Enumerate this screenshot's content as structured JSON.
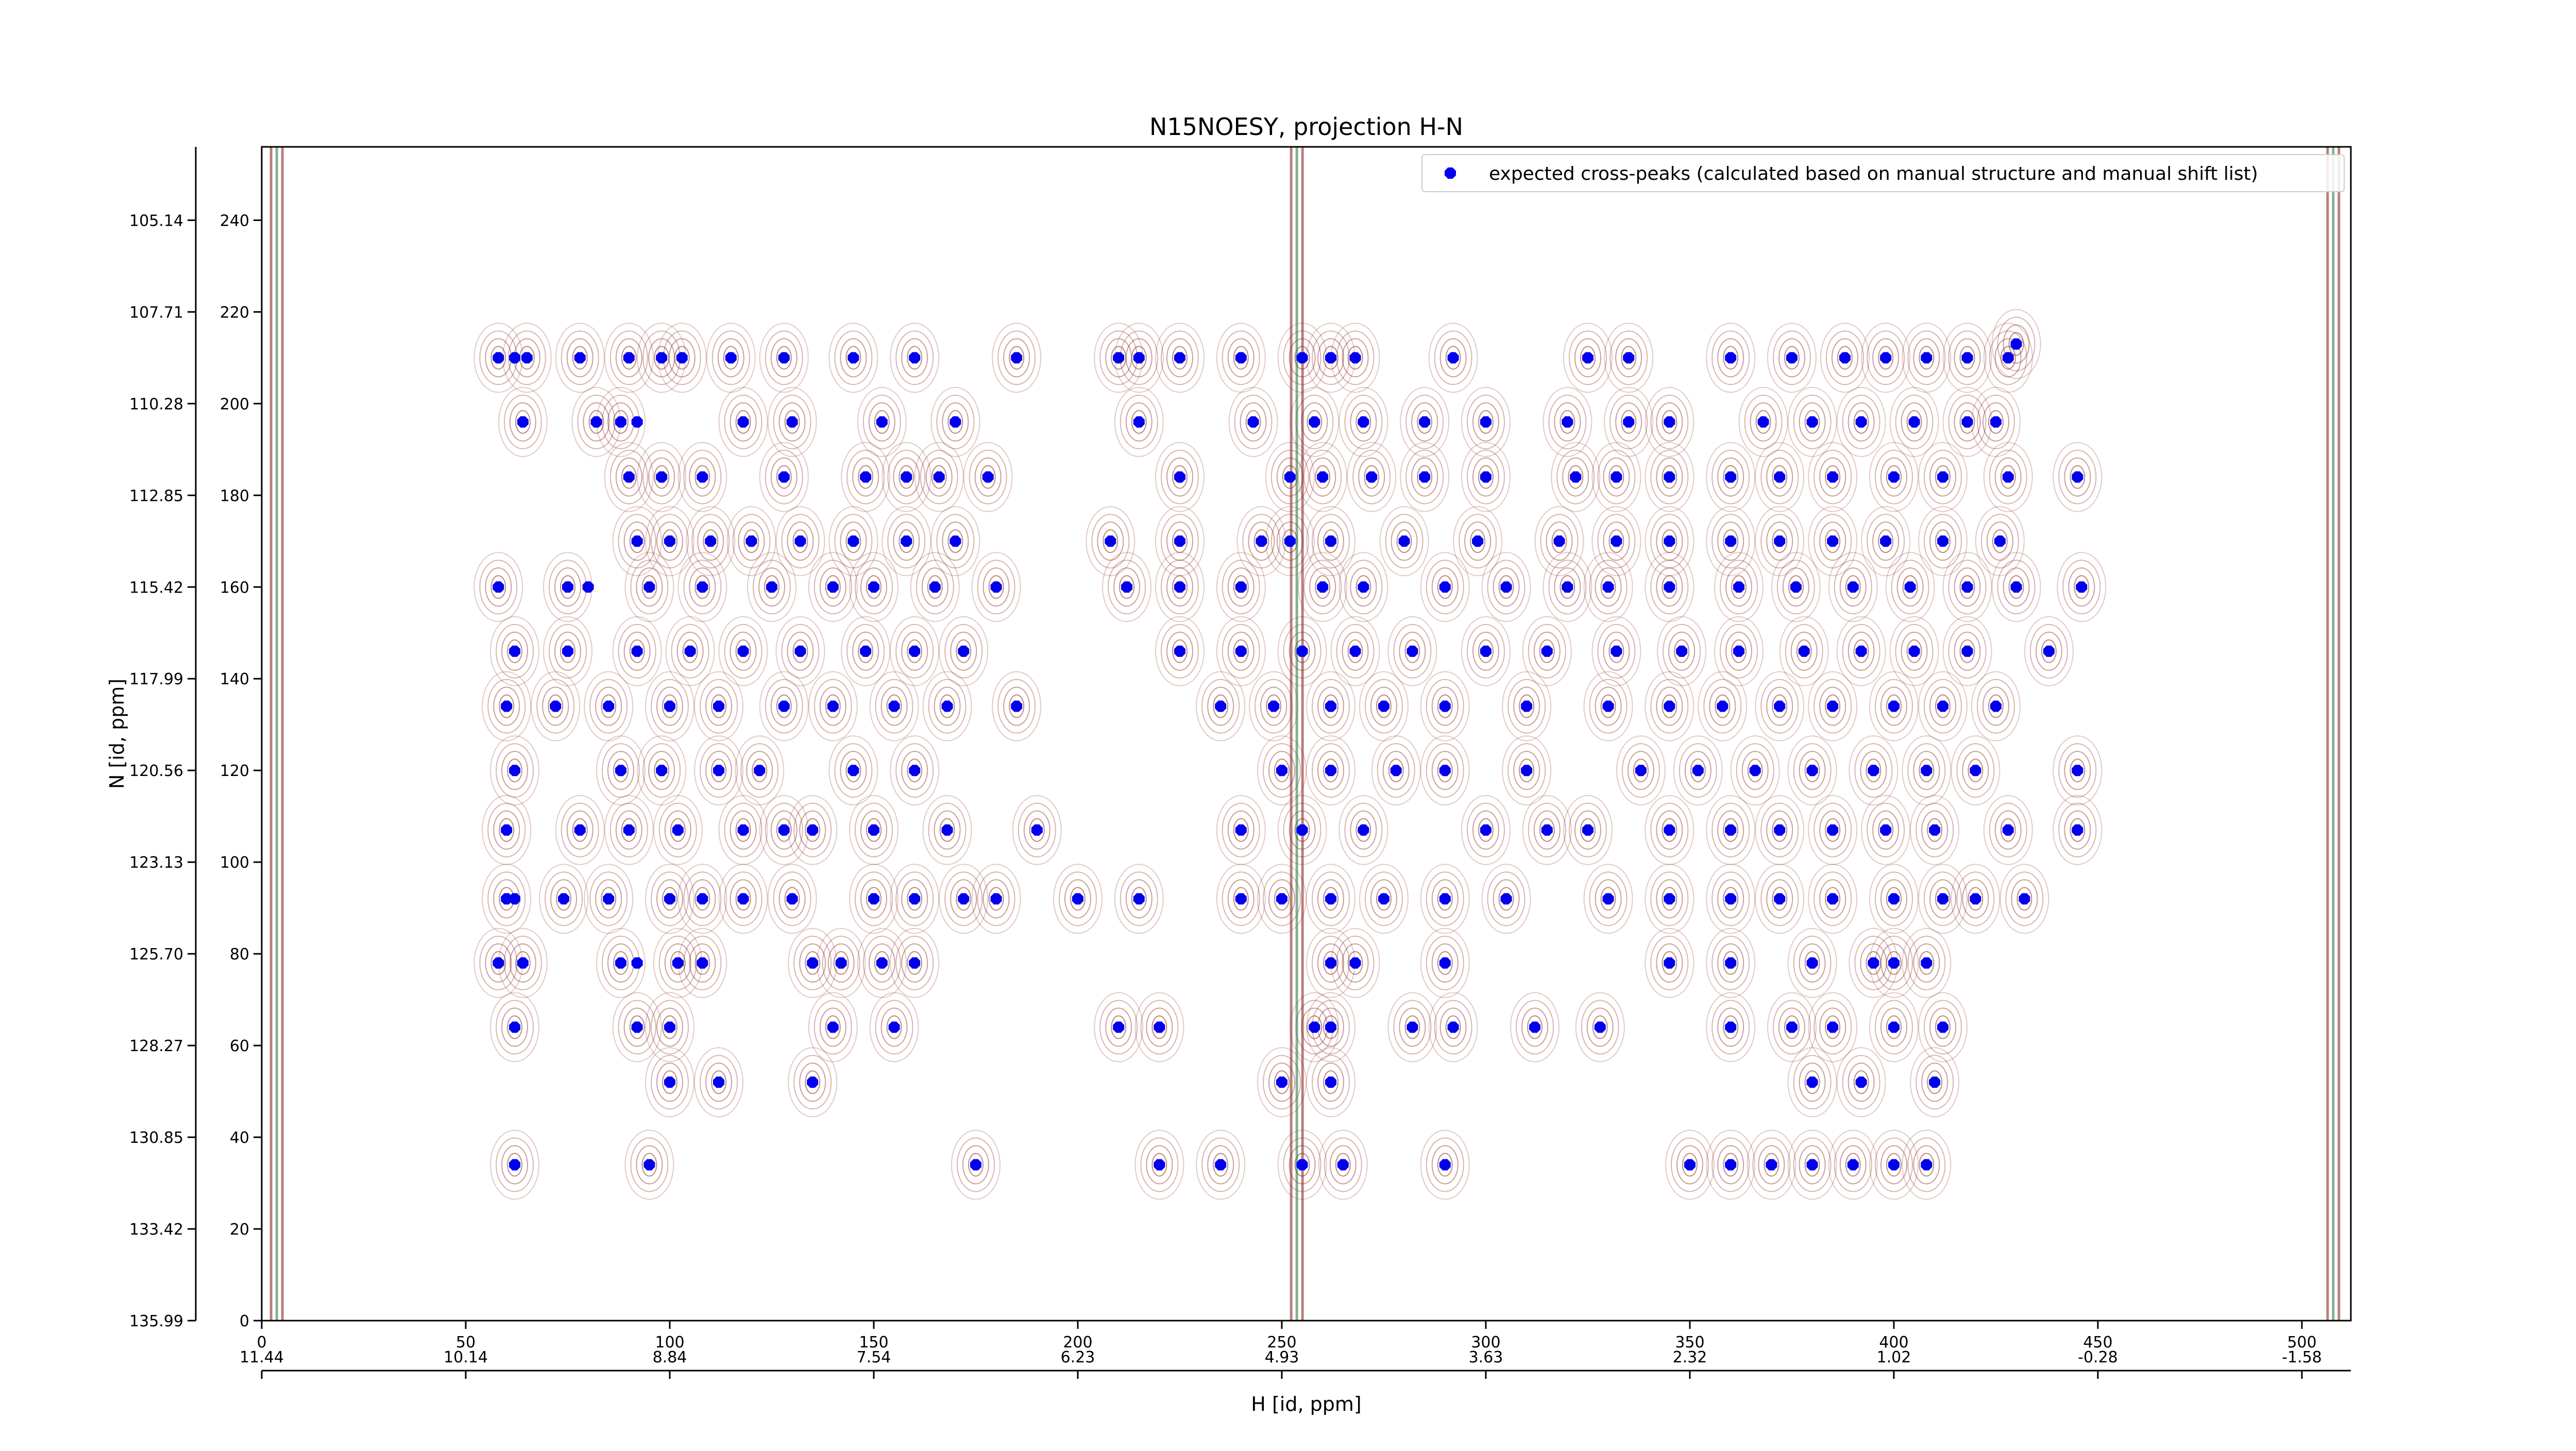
{
  "chart_data": {
    "type": "scatter",
    "title": "N15NOESY, projection H-N",
    "xlabel": "H [id, ppm]",
    "ylabel": "N [id, ppm]",
    "xlim": [
      0,
      512
    ],
    "ylim": [
      0,
      256
    ],
    "x_ticks": [
      "0",
      "50",
      "100",
      "150",
      "200",
      "250",
      "300",
      "350",
      "400",
      "450",
      "500"
    ],
    "y_ticks": [
      "0",
      "20",
      "40",
      "60",
      "80",
      "100",
      "120",
      "140",
      "160",
      "180",
      "200",
      "220",
      "240"
    ],
    "h_ppm_ticks": [
      "11.44",
      "10.14",
      "8.84",
      "7.54",
      "6.23",
      "4.93",
      "3.63",
      "2.32",
      "1.02",
      "-0.28",
      "-1.58"
    ],
    "h_ppm_positions": [
      0,
      50,
      100,
      150,
      200,
      250,
      300,
      350,
      400,
      450,
      500
    ],
    "n_ppm_ticks": [
      "135.99",
      "133.42",
      "130.85",
      "128.27",
      "125.70",
      "123.13",
      "120.56",
      "117.99",
      "115.42",
      "112.85",
      "110.28",
      "107.71",
      "105.14"
    ],
    "n_ppm_positions": [
      0,
      20,
      40,
      60,
      80,
      100,
      120,
      140,
      160,
      180,
      200,
      220,
      240
    ],
    "legend": {
      "position": "top-right",
      "entries": [
        "expected cross-peaks (calculated based on manual structure and manual shift list)"
      ]
    },
    "grid": false,
    "colors": {
      "marker": "#0000ee",
      "contour_positive": "#8b2a22",
      "contour_negative": "#2e7d4f",
      "axes": "#000000"
    },
    "series": [
      {
        "name": "expected cross-peaks (calculated based on manual structure and manual shift list)",
        "x": [
          58,
          62,
          65,
          78,
          90,
          98,
          103,
          115,
          128,
          145,
          160,
          185,
          210,
          215,
          225,
          240,
          255,
          262,
          268,
          292,
          325,
          335,
          360,
          375,
          388,
          398,
          408,
          418,
          428,
          430,
          64,
          82,
          88,
          92,
          118,
          130,
          152,
          170,
          215,
          243,
          258,
          270,
          285,
          300,
          320,
          335,
          345,
          368,
          380,
          392,
          405,
          418,
          425,
          90,
          98,
          108,
          128,
          148,
          158,
          166,
          178,
          225,
          252,
          260,
          272,
          285,
          300,
          322,
          332,
          345,
          360,
          372,
          385,
          400,
          412,
          428,
          445,
          92,
          100,
          110,
          120,
          132,
          145,
          158,
          170,
          208,
          225,
          245,
          252,
          262,
          280,
          298,
          318,
          332,
          345,
          360,
          372,
          385,
          398,
          412,
          426,
          58,
          75,
          80,
          95,
          108,
          125,
          140,
          150,
          165,
          180,
          212,
          225,
          240,
          260,
          270,
          290,
          305,
          320,
          330,
          345,
          362,
          376,
          390,
          404,
          418,
          430,
          446,
          62,
          75,
          92,
          105,
          118,
          132,
          148,
          160,
          172,
          225,
          240,
          255,
          268,
          282,
          300,
          315,
          332,
          348,
          362,
          378,
          392,
          405,
          418,
          438,
          60,
          72,
          85,
          100,
          112,
          128,
          140,
          155,
          168,
          185,
          235,
          248,
          262,
          275,
          290,
          310,
          330,
          345,
          358,
          372,
          385,
          400,
          412,
          425,
          62,
          88,
          98,
          112,
          122,
          145,
          160,
          250,
          262,
          278,
          290,
          310,
          338,
          352,
          366,
          380,
          395,
          408,
          420,
          445,
          60,
          78,
          90,
          102,
          118,
          128,
          135,
          150,
          168,
          190,
          240,
          255,
          270,
          300,
          315,
          325,
          345,
          360,
          372,
          385,
          398,
          410,
          428,
          445,
          60,
          62,
          74,
          85,
          100,
          108,
          118,
          130,
          150,
          160,
          172,
          180,
          200,
          215,
          240,
          250,
          262,
          275,
          290,
          305,
          330,
          345,
          360,
          372,
          385,
          400,
          412,
          420,
          432,
          58,
          64,
          88,
          92,
          102,
          108,
          135,
          142,
          152,
          160,
          262,
          268,
          290,
          345,
          360,
          380,
          395,
          400,
          408,
          62,
          92,
          100,
          140,
          155,
          210,
          220,
          258,
          262,
          282,
          292,
          312,
          328,
          360,
          375,
          385,
          400,
          412,
          62,
          95,
          175,
          220,
          235,
          255,
          265,
          290,
          350,
          360,
          370,
          380,
          390,
          400,
          408,
          100,
          112,
          135,
          250,
          262,
          380,
          392,
          410
        ],
        "y": [
          210,
          210,
          210,
          210,
          210,
          210,
          210,
          210,
          210,
          210,
          210,
          210,
          210,
          210,
          210,
          210,
          210,
          210,
          210,
          210,
          210,
          210,
          210,
          210,
          210,
          210,
          210,
          210,
          210,
          213,
          196,
          196,
          196,
          196,
          196,
          196,
          196,
          196,
          196,
          196,
          196,
          196,
          196,
          196,
          196,
          196,
          196,
          196,
          196,
          196,
          196,
          196,
          196,
          184,
          184,
          184,
          184,
          184,
          184,
          184,
          184,
          184,
          184,
          184,
          184,
          184,
          184,
          184,
          184,
          184,
          184,
          184,
          184,
          184,
          184,
          184,
          184,
          170,
          170,
          170,
          170,
          170,
          170,
          170,
          170,
          170,
          170,
          170,
          170,
          170,
          170,
          170,
          170,
          170,
          170,
          170,
          170,
          170,
          170,
          170,
          170,
          160,
          160,
          160,
          160,
          160,
          160,
          160,
          160,
          160,
          160,
          160,
          160,
          160,
          160,
          160,
          160,
          160,
          160,
          160,
          160,
          160,
          160,
          160,
          160,
          160,
          160,
          160,
          146,
          146,
          146,
          146,
          146,
          146,
          146,
          146,
          146,
          146,
          146,
          146,
          146,
          146,
          146,
          146,
          146,
          146,
          146,
          146,
          146,
          146,
          146,
          146,
          134,
          134,
          134,
          134,
          134,
          134,
          134,
          134,
          134,
          134,
          134,
          134,
          134,
          134,
          134,
          134,
          134,
          134,
          134,
          134,
          134,
          134,
          134,
          134,
          120,
          120,
          120,
          120,
          120,
          120,
          120,
          120,
          120,
          120,
          120,
          120,
          120,
          120,
          120,
          120,
          120,
          120,
          120,
          120,
          107,
          107,
          107,
          107,
          107,
          107,
          107,
          107,
          107,
          107,
          107,
          107,
          107,
          107,
          107,
          107,
          107,
          107,
          107,
          107,
          107,
          107,
          107,
          107,
          92,
          92,
          92,
          92,
          92,
          92,
          92,
          92,
          92,
          92,
          92,
          92,
          92,
          92,
          92,
          92,
          92,
          92,
          92,
          92,
          92,
          92,
          92,
          92,
          92,
          92,
          92,
          92,
          92,
          78,
          78,
          78,
          78,
          78,
          78,
          78,
          78,
          78,
          78,
          78,
          78,
          78,
          78,
          78,
          78,
          78,
          78,
          78,
          64,
          64,
          64,
          64,
          64,
          64,
          64,
          64,
          64,
          64,
          64,
          64,
          64,
          64,
          64,
          64,
          64,
          64,
          34,
          34,
          34,
          34,
          34,
          34,
          34,
          34,
          34,
          34,
          34,
          34,
          34,
          34,
          34,
          52,
          52,
          52,
          52,
          52,
          52,
          52,
          52
        ]
      }
    ]
  }
}
